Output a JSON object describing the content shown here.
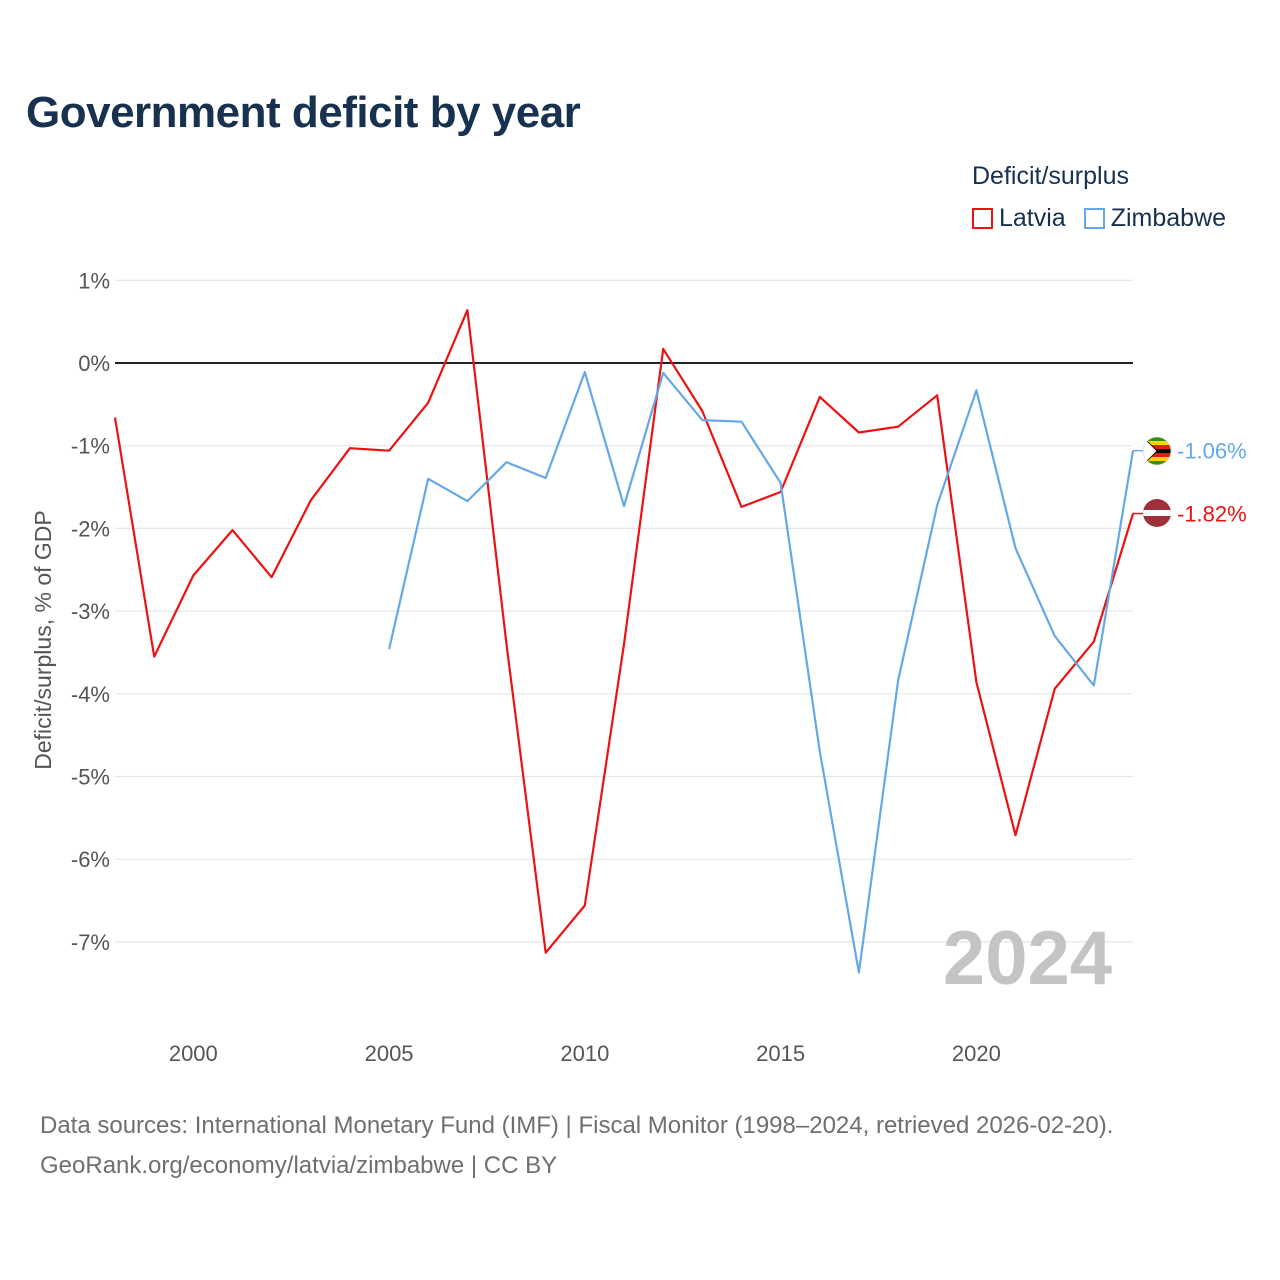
{
  "title": "Government deficit by year",
  "legend": {
    "title": "Deficit/surplus",
    "items": [
      {
        "label": "Latvia",
        "color": "#ee1111"
      },
      {
        "label": "Zimbabwe",
        "color": "#64a8e8"
      }
    ]
  },
  "source": {
    "line1": "Data sources: International Monetary Fund (IMF) | Fiscal Monitor (1998–2024, retrieved 2026-02-20).",
    "line2": "GeoRank.org/economy/latvia/zimbabwe | CC BY"
  },
  "chart_data": {
    "type": "line",
    "title": "Government deficit by year",
    "xlabel": "",
    "ylabel": "Deficit/surplus, % of GDP",
    "xlim": [
      1998,
      2024
    ],
    "ylim": [
      -8,
      1
    ],
    "yticks": [
      1,
      0,
      -1,
      -2,
      -3,
      -4,
      -5,
      -6,
      -7
    ],
    "ytick_labels": [
      "1%",
      "0%",
      "-1%",
      "-2%",
      "-3%",
      "-4%",
      "-5%",
      "-6%",
      "-7%"
    ],
    "xticks": [
      2000,
      2005,
      2010,
      2015,
      2020
    ],
    "xtick_labels": [
      "2000",
      "2005",
      "2010",
      "2015",
      "2020"
    ],
    "year_watermark": "2024",
    "series": [
      {
        "name": "Latvia",
        "color": "#ee1111",
        "end_label": "-1.82%",
        "x": [
          1998,
          1999,
          2000,
          2001,
          2002,
          2003,
          2004,
          2005,
          2006,
          2007,
          2008,
          2009,
          2010,
          2011,
          2012,
          2013,
          2014,
          2015,
          2016,
          2017,
          2018,
          2019,
          2020,
          2021,
          2022,
          2023,
          2024
        ],
        "values": [
          -0.66,
          -3.55,
          -2.57,
          -2.02,
          -2.59,
          -1.66,
          -1.03,
          -1.06,
          -0.48,
          0.64,
          -3.4,
          -7.13,
          -6.56,
          -3.4,
          0.17,
          -0.58,
          -1.74,
          -1.56,
          -0.41,
          -0.84,
          -0.77,
          -0.39,
          -3.86,
          -5.71,
          -3.94,
          -3.37,
          -1.82
        ]
      },
      {
        "name": "Zimbabwe",
        "color": "#64a8e8",
        "end_label": "-1.06%",
        "x": [
          2005,
          2006,
          2007,
          2008,
          2009,
          2010,
          2011,
          2012,
          2013,
          2014,
          2015,
          2016,
          2017,
          2018,
          2019,
          2020,
          2021,
          2022,
          2023,
          2024
        ],
        "values": [
          -3.46,
          -1.4,
          -1.67,
          -1.2,
          -1.39,
          -0.11,
          -1.73,
          -0.12,
          -0.69,
          -0.71,
          -1.45,
          -4.7,
          -7.37,
          -3.84,
          -1.72,
          -0.33,
          -2.24,
          -3.3,
          -3.9,
          -1.06
        ]
      }
    ]
  }
}
